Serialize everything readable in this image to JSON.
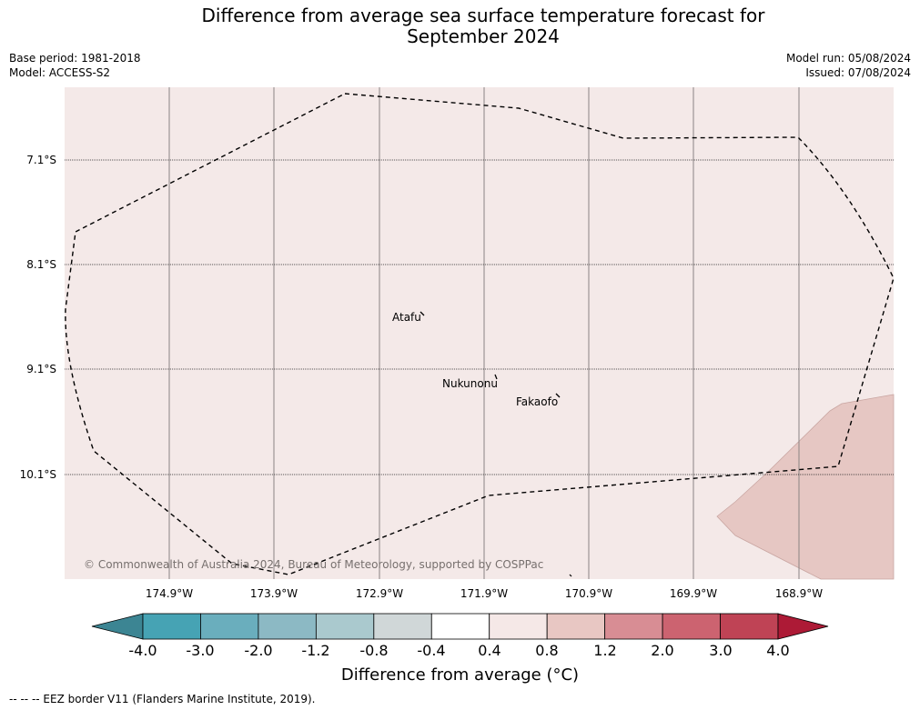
{
  "title_line1": "Difference from average sea surface temperature forecast for",
  "title_line2": "September 2024",
  "base_period": "Base period: 1981-2018",
  "model": "Model: ACCESS-S2",
  "model_run": "Model run: 05/08/2024",
  "issued": "Issued: 07/08/2024",
  "latitudes": [
    "7.1°S",
    "8.1°S",
    "9.1°S",
    "10.1°S"
  ],
  "longitudes": [
    "174.9°W",
    "173.9°W",
    "172.9°W",
    "171.9°W",
    "170.9°W",
    "169.9°W",
    "168.9°W"
  ],
  "places": [
    "Atafu",
    "Nukunonu",
    "Fakaofo"
  ],
  "copyright": "© Commonwealth of Australia 2024, Bureau of Meteorology, supported by COSPPac",
  "colorbar": {
    "title": "Difference from average (°C)",
    "tick_labels": [
      "-4.0",
      "-3.0",
      "-2.0",
      "-1.2",
      "-0.8",
      "-0.4",
      "0.4",
      "0.8",
      "1.2",
      "2.0",
      "3.0",
      "4.0"
    ],
    "colors": [
      "#3c8593",
      "#46a3b4",
      "#6aaebd",
      "#8cb9c4",
      "#aac9ce",
      "#d0d7d8",
      "#ffffff",
      "#f5e8e7",
      "#e8c7c3",
      "#d88d94",
      "#cc6370",
      "#bf4355",
      "#ad1a36"
    ]
  },
  "footnote": "--  --  -- EEZ border V11 (Flanders Marine Institute, 2019).",
  "map_colors": {
    "background": "#f4e9e8",
    "warm_patch": "#e6c7c3",
    "warm_patch_edge": "#c9a6a2"
  }
}
